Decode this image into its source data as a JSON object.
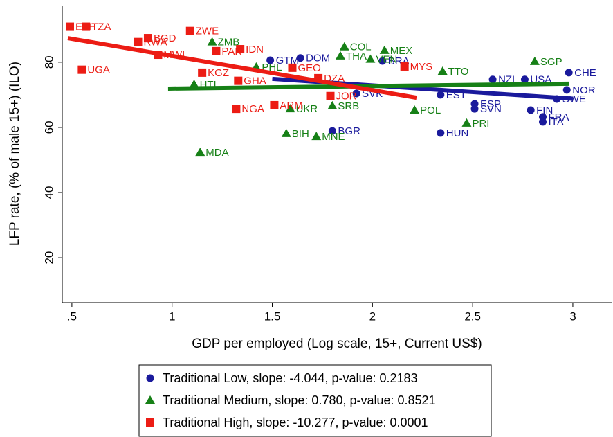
{
  "chart_data": {
    "type": "scatter",
    "x_label": "GDP per employed (Log scale, 15+, Current US$)",
    "y_label": "LFP rate, (% of male 15+) (ILO)",
    "xlim": [
      0.452,
      3.197
    ],
    "ylim": [
      6.2,
      97.4
    ],
    "xticks": [
      {
        "value": 0.5,
        "label": ".5"
      },
      1,
      1.5,
      2,
      2.5,
      3
    ],
    "yticks": [
      20,
      40,
      60,
      80
    ],
    "series": [
      {
        "name": "Traditional Low, slope: -4.044, p-value: 0.2183",
        "color": "#1a1a9c",
        "marker": "circle",
        "labels": [
          "GTM",
          "DOM",
          "BRA",
          "SVK",
          "EST",
          "NZL",
          "USA",
          "CHE",
          "NOR",
          "SWE",
          "ESP",
          "SVN",
          "FIN",
          "FRA",
          "ITA",
          "HUN",
          "BGR"
        ],
        "x": [
          1.49,
          1.64,
          2.05,
          1.92,
          2.34,
          2.6,
          2.76,
          2.98,
          2.97,
          2.92,
          2.51,
          2.51,
          2.79,
          2.85,
          2.85,
          2.34,
          1.8
        ],
        "values": [
          80.6,
          81.3,
          80.4,
          70.4,
          70.0,
          74.7,
          74.7,
          76.8,
          71.5,
          68.7,
          67.2,
          65.7,
          65.3,
          63.2,
          61.7,
          58.3,
          58.9
        ],
        "fit_x": [
          1.5,
          3.0
        ],
        "fit_y": [
          74.9,
          68.8
        ]
      },
      {
        "name": "Traditional Medium, slope: 0.780, p-value: 0.8521",
        "color": "#168016",
        "marker": "triangle",
        "labels": [
          "COL",
          "MEX",
          "THA",
          "VEN",
          "ZMB",
          "SGP",
          "PRI",
          "MDA",
          "BIH",
          "MNE",
          "UKR",
          "SRB",
          "HTI",
          "PHL",
          "TTO",
          "POL"
        ],
        "x": [
          1.86,
          2.06,
          1.84,
          1.99,
          1.2,
          2.81,
          2.47,
          1.14,
          1.57,
          1.72,
          1.59,
          1.8,
          1.11,
          1.42,
          2.35,
          2.21
        ],
        "values": [
          84.7,
          83.6,
          81.9,
          80.9,
          86.2,
          80.2,
          61.3,
          52.3,
          58.1,
          57.2,
          65.7,
          66.6,
          73.2,
          78.5,
          77.2,
          65.3
        ],
        "fit_x": [
          0.98,
          2.98
        ],
        "fit_y": [
          71.9,
          73.4
        ]
      },
      {
        "name": "Traditional High, slope: -10.277, p-value: 0.0001",
        "color": "#ec1c14",
        "marker": "square",
        "labels": [
          "ETH",
          "TZA",
          "BGD",
          "RWA",
          "MWI",
          "ZWE",
          "IDN",
          "PAK",
          "UGA",
          "KGZ",
          "GEO",
          "GHA",
          "NGA",
          "ARM",
          "DZA",
          "MYS",
          "JOR"
        ],
        "x": [
          0.49,
          0.57,
          0.88,
          0.83,
          0.93,
          1.09,
          1.34,
          1.22,
          0.55,
          1.15,
          1.6,
          1.33,
          1.32,
          1.51,
          1.73,
          2.16,
          1.79
        ],
        "values": [
          90.9,
          90.9,
          87.4,
          86.2,
          82.3,
          89.6,
          84.0,
          83.4,
          77.7,
          76.8,
          78.3,
          74.3,
          65.7,
          66.8,
          75.1,
          78.7,
          69.6
        ],
        "fit_x": [
          0.48,
          2.22
        ],
        "fit_y": [
          87.4,
          69.1
        ]
      }
    ]
  }
}
